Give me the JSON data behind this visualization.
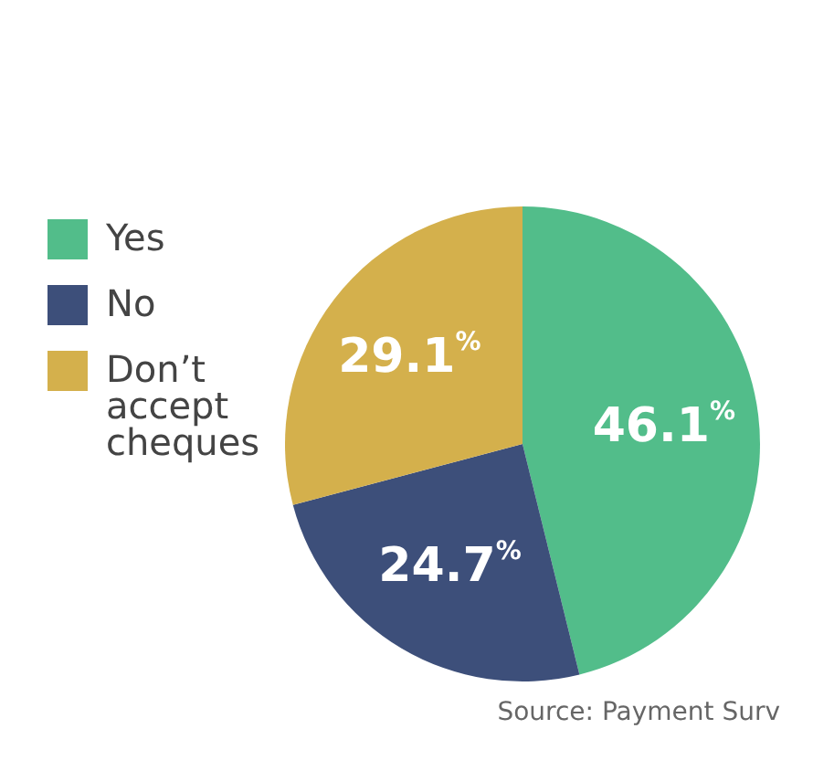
{
  "chart_data": {
    "type": "pie",
    "categories": [
      "Yes",
      "No",
      "Don’t accept cheques"
    ],
    "values": [
      46.1,
      24.7,
      29.1
    ],
    "colors": [
      "#52bd8a",
      "#3d4f7a",
      "#d4b04c"
    ],
    "value_labels": [
      "46.1$^{%}$",
      "24.7$^{%}$",
      "29.1$^{%}$"
    ],
    "legend": "left",
    "annotations": [
      "Source: Payment Surv"
    ]
  }
}
